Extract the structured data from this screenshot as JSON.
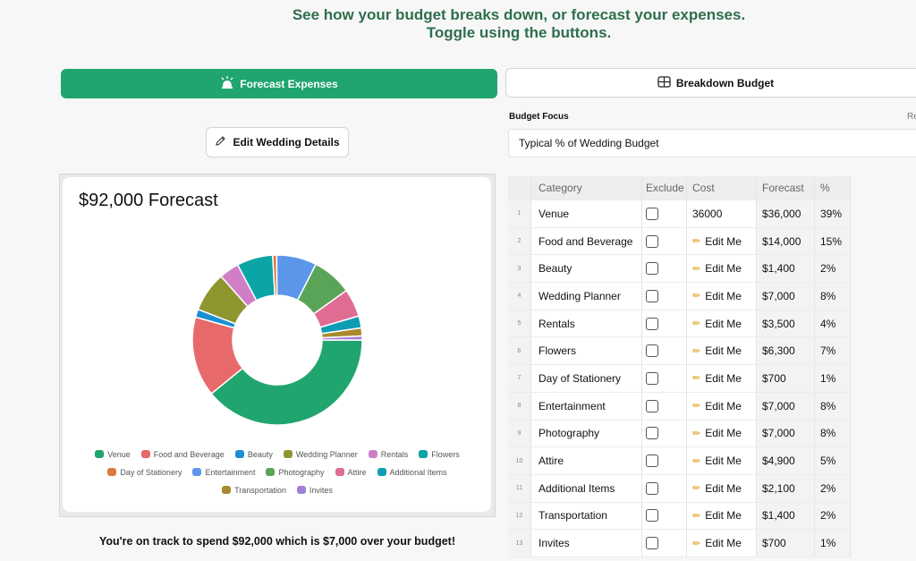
{
  "header": {
    "line1": "See how your budget breaks down, or forecast your expenses.",
    "line2": "Toggle using the buttons."
  },
  "toggle": {
    "forecast_label": "Forecast Expenses",
    "breakdown_label": "Breakdown Budget",
    "active": "forecast",
    "active_color": "#21a56f"
  },
  "edit_details_label": "Edit Wedding Details",
  "budget_focus": {
    "label": "Budget Focus",
    "right_label": "Re",
    "value": "Typical % of Wedding Budget"
  },
  "forecast_card": {
    "title": "$92,000 Forecast"
  },
  "chart_data": {
    "type": "pie",
    "donut": true,
    "categories": [
      "Venue",
      "Food and Beverage",
      "Beauty",
      "Wedding Planner",
      "Rentals",
      "Flowers",
      "Day of Stationery",
      "Entertainment",
      "Photography",
      "Attire",
      "Additional Items",
      "Transportation",
      "Invites"
    ],
    "values": [
      36000,
      14000,
      1400,
      7000,
      3500,
      6300,
      700,
      7000,
      7000,
      4900,
      2100,
      1400,
      700
    ],
    "colors": [
      "#21a56f",
      "#e8696a",
      "#1a8fd6",
      "#8f962f",
      "#d07fc7",
      "#0aa5a4",
      "#d97b3e",
      "#5b96ea",
      "#5aa457",
      "#e06b93",
      "#0d9cb4",
      "#a8892d",
      "#a27fd6"
    ],
    "legend_position": "bottom",
    "legend": [
      "Venue",
      "Food and Beverage",
      "Beauty",
      "Wedding Planner",
      "Rentals",
      "Flowers",
      "Day of Stationery",
      "Entertainment",
      "Photography",
      "Attire",
      "Additional Items",
      "Transportation",
      "Invites"
    ]
  },
  "footer_message": "You're on track to spend $92,000 which is $7,000 over your budget!",
  "table": {
    "headers": [
      "Category",
      "Exclude",
      "Cost",
      "Forecast",
      "%"
    ],
    "edit_label": "Edit Me",
    "rows": [
      {
        "index": "1",
        "category": "Venue",
        "cost": "36000",
        "forecast": "$36,000",
        "pct": "39%"
      },
      {
        "index": "2",
        "category": "Food and Beverage",
        "cost": "Edit Me",
        "forecast": "$14,000",
        "pct": "15%"
      },
      {
        "index": "3",
        "category": "Beauty",
        "cost": "Edit Me",
        "forecast": "$1,400",
        "pct": "2%"
      },
      {
        "index": "4",
        "category": "Wedding Planner",
        "cost": "Edit Me",
        "forecast": "$7,000",
        "pct": "8%"
      },
      {
        "index": "5",
        "category": "Rentals",
        "cost": "Edit Me",
        "forecast": "$3,500",
        "pct": "4%"
      },
      {
        "index": "6",
        "category": "Flowers",
        "cost": "Edit Me",
        "forecast": "$6,300",
        "pct": "7%"
      },
      {
        "index": "7",
        "category": "Day of Stationery",
        "cost": "Edit Me",
        "forecast": "$700",
        "pct": "1%"
      },
      {
        "index": "8",
        "category": "Entertainment",
        "cost": "Edit Me",
        "forecast": "$7,000",
        "pct": "8%"
      },
      {
        "index": "9",
        "category": "Photography",
        "cost": "Edit Me",
        "forecast": "$7,000",
        "pct": "8%"
      },
      {
        "index": "10",
        "category": "Attire",
        "cost": "Edit Me",
        "forecast": "$4,900",
        "pct": "5%"
      },
      {
        "index": "11",
        "category": "Additional Items",
        "cost": "Edit Me",
        "forecast": "$2,100",
        "pct": "2%"
      },
      {
        "index": "12",
        "category": "Transportation",
        "cost": "Edit Me",
        "forecast": "$1,400",
        "pct": "2%"
      },
      {
        "index": "13",
        "category": "Invites",
        "cost": "Edit Me",
        "forecast": "$700",
        "pct": "1%"
      }
    ]
  }
}
